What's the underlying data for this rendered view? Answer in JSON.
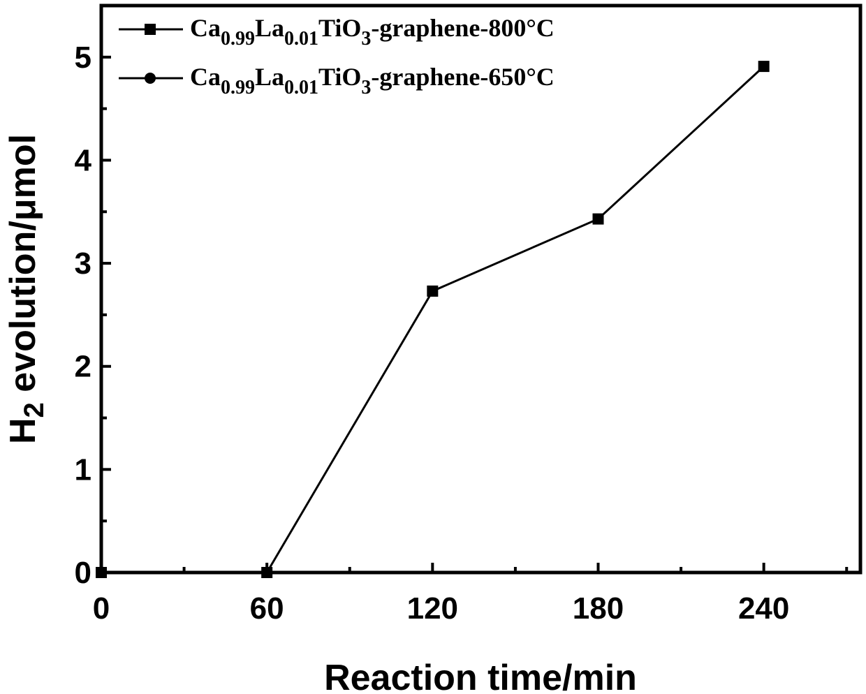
{
  "chart_data": {
    "type": "line",
    "title": "",
    "xlabel": "Reaction time/min",
    "ylabel_main": "H",
    "ylabel_sub": "2",
    "ylabel_rest": " evolution/μmol",
    "xlim": [
      0,
      275
    ],
    "ylim": [
      0,
      5.5
    ],
    "xticks": [
      "0",
      "60",
      "120",
      "180",
      "240"
    ],
    "yticks": [
      "0",
      "1",
      "2",
      "3",
      "4",
      "5"
    ],
    "grid": false,
    "legend_position": "top-left",
    "series": [
      {
        "name": "Ca0.99La0.01TiO3-graphene-800°C",
        "legend": {
          "a": "Ca",
          "a_sub": "0.99",
          "b": "La",
          "b_sub": "0.01",
          "c": "TiO",
          "c_sub": "3",
          "d": "-graphene-800°C"
        },
        "marker": "square",
        "color": "#000000",
        "x": [
          0,
          60,
          120,
          180,
          240
        ],
        "y": [
          0,
          0,
          2.73,
          3.43,
          4.91
        ]
      },
      {
        "name": "Ca0.99La0.01TiO3-graphene-650°C",
        "legend": {
          "a": "Ca",
          "a_sub": "0.99",
          "b": "La",
          "b_sub": "0.01",
          "c": "TiO",
          "c_sub": "3",
          "d": "-graphene-650°C"
        },
        "marker": "circle",
        "color": "#000000",
        "x": [],
        "y": []
      }
    ]
  }
}
